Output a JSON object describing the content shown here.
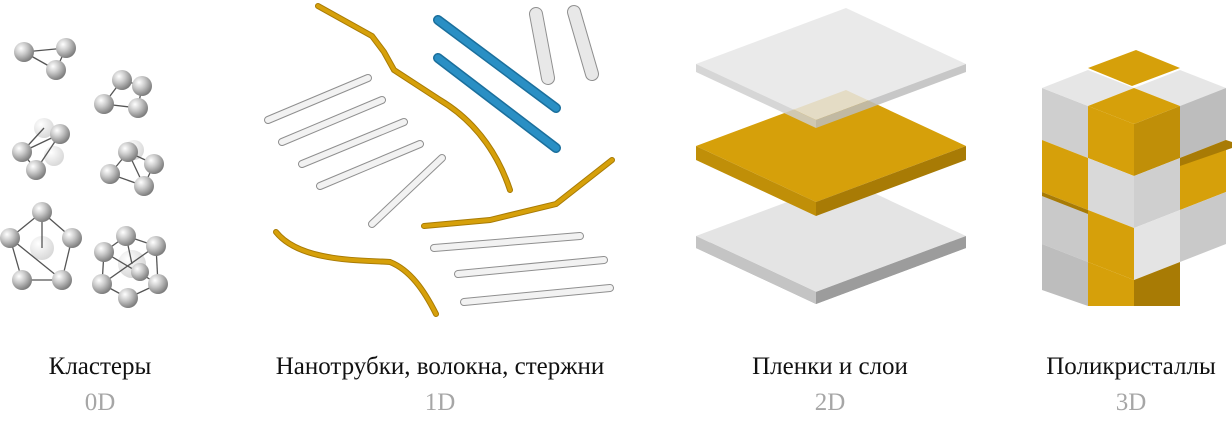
{
  "categories": [
    {
      "label": "Кластеры",
      "dim": "0D"
    },
    {
      "label": "Нанотрубки, волокна, стержни",
      "dim": "1D"
    },
    {
      "label": "Пленки и слои",
      "dim": "2D"
    },
    {
      "label": "Поликристаллы",
      "dim": "3D"
    }
  ],
  "colors": {
    "gold": "#d6a00a",
    "gold_dark": "#a87b05",
    "blue": "#2a8fc4",
    "white_rod": "#f0f0f0",
    "grey_face": "#d4d4d4",
    "grey_dark": "#a0a0a0",
    "label_text": "#111111",
    "dim_text": "#a6a6a6"
  }
}
